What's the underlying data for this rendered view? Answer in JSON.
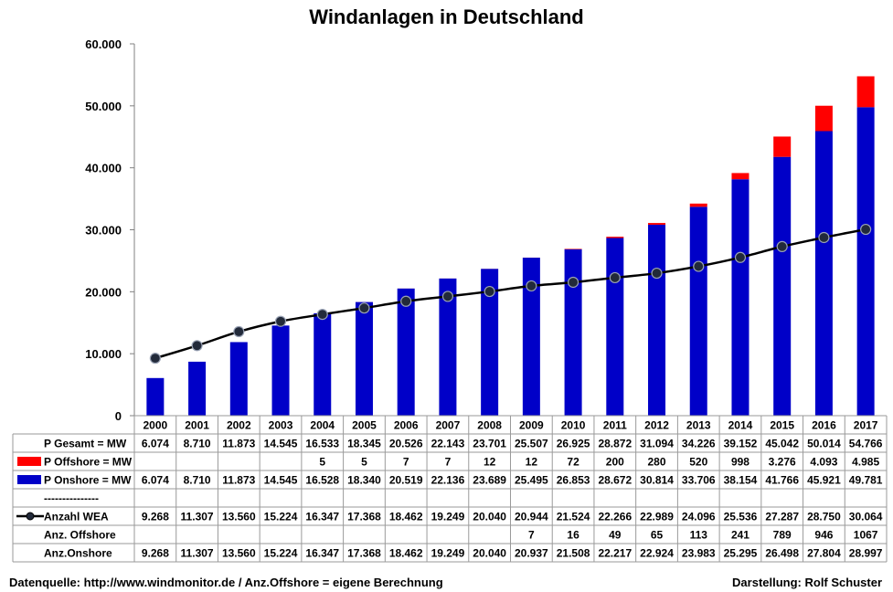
{
  "chart_data": {
    "type": "bar",
    "title": "Windanlagen in Deutschland",
    "categories": [
      "2000",
      "2001",
      "2002",
      "2003",
      "2004",
      "2005",
      "2006",
      "2007",
      "2008",
      "2009",
      "2010",
      "2011",
      "2012",
      "2013",
      "2014",
      "2015",
      "2016",
      "2017"
    ],
    "ylim": [
      0,
      60000
    ],
    "y_ticks": [
      "0",
      "10.000",
      "20.000",
      "30.000",
      "40.000",
      "50.000",
      "60.000"
    ],
    "y_tick_values": [
      0,
      10000,
      20000,
      30000,
      40000,
      50000,
      60000
    ],
    "stacked": true,
    "gridlines": false,
    "legend_placement": "in data table",
    "colors": {
      "onshore": "#0000c8",
      "offshore": "#ff0000",
      "line": "#000000",
      "marker": "#222a3a"
    },
    "series": [
      {
        "name": "P Onshore = MW",
        "kind": "bar",
        "color": "#0000c8",
        "values": [
          6074,
          8710,
          11873,
          14545,
          16528,
          18340,
          20519,
          22136,
          23689,
          25495,
          26853,
          28672,
          30814,
          33706,
          38154,
          41766,
          45921,
          49781
        ]
      },
      {
        "name": "P Offshore = MW",
        "kind": "bar",
        "color": "#ff0000",
        "values": [
          0,
          0,
          0,
          0,
          5,
          5,
          7,
          7,
          12,
          12,
          72,
          200,
          280,
          520,
          998,
          3276,
          4093,
          4985
        ]
      },
      {
        "name": "Anzahl WEA",
        "kind": "line",
        "color": "#000000",
        "values": [
          9268,
          11307,
          13560,
          15224,
          16347,
          17368,
          18462,
          19249,
          20040,
          20944,
          21524,
          22266,
          22989,
          24096,
          25536,
          27287,
          28750,
          30064
        ]
      }
    ],
    "table": {
      "header": [
        "2000",
        "2001",
        "2002",
        "2003",
        "2004",
        "2005",
        "2006",
        "2007",
        "2008",
        "2009",
        "2010",
        "2011",
        "2012",
        "2013",
        "2014",
        "2015",
        "2016",
        "2017"
      ],
      "rows": [
        {
          "label": "P Gesamt = MW",
          "legend": "none",
          "cells": [
            "6.074",
            "8.710",
            "11.873",
            "14.545",
            "16.533",
            "18.345",
            "20.526",
            "22.143",
            "23.701",
            "25.507",
            "26.925",
            "28.872",
            "31.094",
            "34.226",
            "39.152",
            "45.042",
            "50.014",
            "54.766"
          ]
        },
        {
          "label": "P Offshore = MW",
          "legend": "red-box",
          "cells": [
            "",
            "",
            "",
            "",
            "5",
            "5",
            "7",
            "7",
            "12",
            "12",
            "72",
            "200",
            "280",
            "520",
            "998",
            "3.276",
            "4.093",
            "4.985"
          ]
        },
        {
          "label": "P Onshore = MW",
          "legend": "blue-box",
          "cells": [
            "6.074",
            "8.710",
            "11.873",
            "14.545",
            "16.528",
            "18.340",
            "20.519",
            "22.136",
            "23.689",
            "25.495",
            "26.853",
            "28.672",
            "30.814",
            "33.706",
            "38.154",
            "41.766",
            "45.921",
            "49.781"
          ]
        },
        {
          "label": "---------------",
          "legend": "none",
          "cells": [
            "",
            "",
            "",
            "",
            "",
            "",
            "",
            "",
            "",
            "",
            "",
            "",
            "",
            "",
            "",
            "",
            "",
            ""
          ]
        },
        {
          "label": "Anzahl WEA",
          "legend": "line-marker",
          "cells": [
            "9.268",
            "11.307",
            "13.560",
            "15.224",
            "16.347",
            "17.368",
            "18.462",
            "19.249",
            "20.040",
            "20.944",
            "21.524",
            "22.266",
            "22.989",
            "24.096",
            "25.536",
            "27.287",
            "28.750",
            "30.064"
          ]
        },
        {
          "label": "Anz. Offshore",
          "legend": "none",
          "cells": [
            "",
            "",
            "",
            "",
            "",
            "",
            "",
            "",
            "",
            "7",
            "16",
            "49",
            "65",
            "113",
            "241",
            "789",
            "946",
            "1067"
          ]
        },
        {
          "label": "Anz.Onshore",
          "legend": "none",
          "cells": [
            "9.268",
            "11.307",
            "13.560",
            "15.224",
            "16.347",
            "17.368",
            "18.462",
            "19.249",
            "20.040",
            "20.937",
            "21.508",
            "22.217",
            "22.924",
            "23.983",
            "25.295",
            "26.498",
            "27.804",
            "28.997"
          ]
        }
      ]
    }
  },
  "footer": {
    "source": "Datenquelle: http://www.windmonitor.de  / Anz.Offshore = eigene Berechnung",
    "author": "Darstellung: Rolf Schuster"
  }
}
